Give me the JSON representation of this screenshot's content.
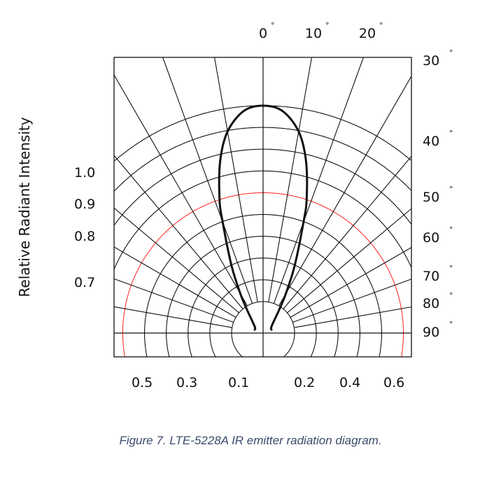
{
  "chart_data": {
    "type": "polar",
    "ylabel": "Relative Radiant Intensity",
    "angle_labels_top": [
      "0",
      "10",
      "20"
    ],
    "angle_labels_right": [
      "30",
      "40",
      "50",
      "60",
      "70",
      "80",
      "90"
    ],
    "degree_symbol": "°",
    "left_scale_labels": [
      "1.0",
      "0.9",
      "0.8",
      "0.7"
    ],
    "bottom_scale_labels": [
      "0.5",
      "0.3",
      "0.1",
      "0.2",
      "0.4",
      "0.6"
    ],
    "angular_grid_step_deg": 10,
    "radial_grid_circles": 10,
    "highlight_circle_index": 6,
    "grid": true,
    "series": [
      {
        "angles_deg": [
          0,
          5,
          10,
          14,
          18,
          20,
          25,
          30,
          35,
          40,
          50,
          60,
          68
        ],
        "relative_intensity": [
          1.0,
          0.98,
          0.9,
          0.78,
          0.62,
          0.52,
          0.33,
          0.2,
          0.12,
          0.08,
          0.05,
          0.04,
          0.04
        ],
        "symmetric": true
      }
    ],
    "colors": {
      "grid": "#111111",
      "highlight_circle": "#ff2020",
      "curve": "#111111"
    }
  },
  "caption": "Figure 7.  LTE-5228A IR emitter radiation diagram."
}
